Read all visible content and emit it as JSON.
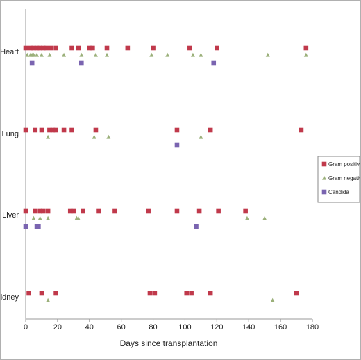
{
  "chart_data": {
    "type": "scatter",
    "title": "",
    "xlabel": "Days since transplantation",
    "ylabel": "",
    "xlim": [
      0,
      180
    ],
    "x_ticks": [
      0,
      20,
      40,
      60,
      80,
      100,
      120,
      140,
      160,
      180
    ],
    "categories": [
      "Heart",
      "Lung",
      "Liver",
      "Kidney"
    ],
    "grid": false,
    "legend_position": "right",
    "series": [
      {
        "name": "Gram positive",
        "marker": "square",
        "color": "#c0394b",
        "points": {
          "Heart": [
            0,
            3,
            5,
            7,
            9,
            11,
            13,
            16,
            19,
            29,
            33,
            40,
            42,
            51,
            64,
            80,
            103,
            120,
            176
          ],
          "Lung": [
            0,
            6,
            10,
            15,
            17,
            19,
            24,
            29,
            44,
            95,
            116,
            173
          ],
          "Liver": [
            0,
            6,
            9,
            11,
            14,
            28,
            30,
            36,
            46,
            56,
            77,
            95,
            109,
            121,
            138
          ],
          "Kidney": [
            2,
            10,
            19,
            78,
            81,
            101,
            104,
            116,
            170
          ]
        }
      },
      {
        "name": "Gram negative",
        "marker": "triangle",
        "color": "#9bb07a",
        "points": {
          "Heart": [
            1,
            3,
            4,
            5,
            7,
            10,
            15,
            24,
            35,
            44,
            51,
            79,
            89,
            105,
            110,
            152,
            176
          ],
          "Lung": [
            14,
            43,
            52,
            110
          ],
          "Liver": [
            5,
            9,
            14,
            32,
            33,
            139,
            150
          ],
          "Kidney": [
            14,
            155
          ]
        }
      },
      {
        "name": "Candida",
        "marker": "square",
        "color": "#7a64b0",
        "points": {
          "Heart": [
            4,
            35,
            118
          ],
          "Lung": [
            95
          ],
          "Liver": [
            0,
            7,
            8,
            107
          ],
          "Kidney": []
        }
      }
    ]
  }
}
